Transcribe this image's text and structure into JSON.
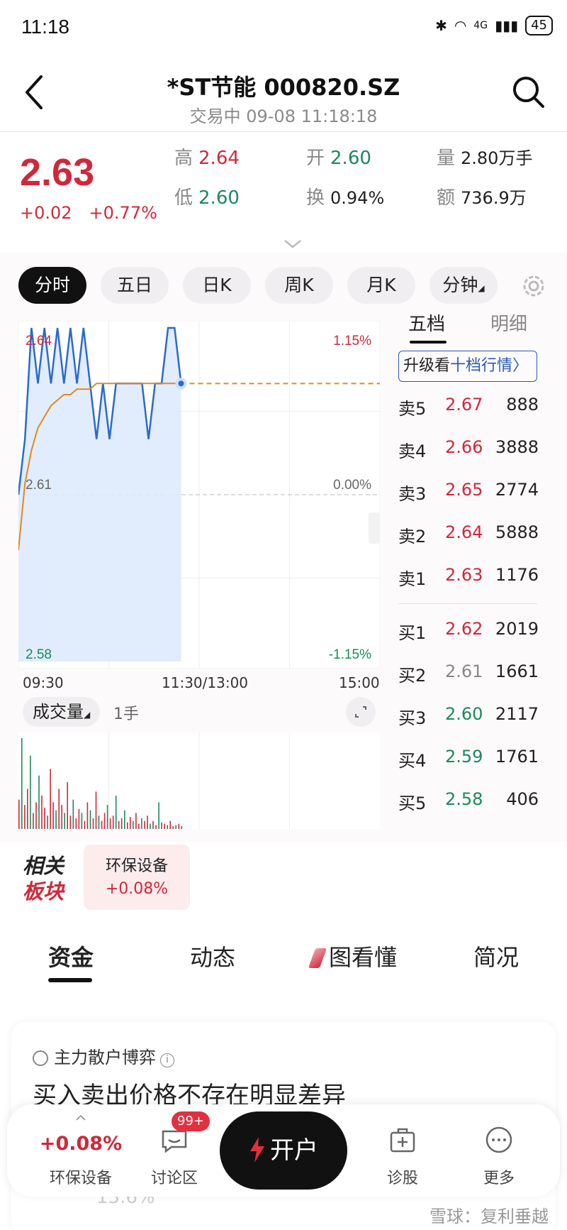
{
  "status": {
    "time": "11:18",
    "network": "4G",
    "battery": "45"
  },
  "header": {
    "title": "*ST节能 000820.SZ",
    "subtitle": "交易中 09-08 11:18:18"
  },
  "quote": {
    "price": "2.63",
    "change": "+0.02",
    "change_pct": "+0.77%",
    "high_label": "高",
    "high": "2.64",
    "open_label": "开",
    "open": "2.60",
    "volume_label": "量",
    "volume": "2.80万手",
    "low_label": "低",
    "low": "2.60",
    "turnover_label": "换",
    "turnover": "0.94%",
    "amount_label": "额",
    "amount": "736.9万"
  },
  "chart_tabs": [
    "分时",
    "五日",
    "日K",
    "周K",
    "月K",
    "分钟"
  ],
  "chart_data": {
    "type": "line",
    "y_price_labels": [
      "2.64",
      "2.61",
      "2.58"
    ],
    "y_pct_labels": [
      "1.15%",
      "0.00%",
      "-1.15%"
    ],
    "x_labels": [
      "09:30",
      "11:30/13:00",
      "15:00"
    ],
    "prev_close": 2.61,
    "ylim": [
      2.58,
      2.64
    ],
    "series": [
      {
        "values": [
          2.61,
          2.62,
          2.64,
          2.63,
          2.64,
          2.63,
          2.64,
          2.63,
          2.64,
          2.63,
          2.64,
          2.63,
          2.62,
          2.63,
          2.62,
          2.63,
          2.63,
          2.63,
          2.63,
          2.63,
          2.62,
          2.63,
          2.63,
          2.64,
          2.64,
          2.63
        ]
      },
      {
        "values": [
          2.6,
          2.612,
          2.618,
          2.622,
          2.624,
          2.626,
          2.627,
          2.628,
          2.628,
          2.629,
          2.629,
          2.629,
          2.63,
          2.63,
          2.63,
          2.63,
          2.63,
          2.63,
          2.63,
          2.63,
          2.63,
          2.63,
          2.63,
          2.63,
          2.63,
          2.63
        ]
      }
    ],
    "volume_label": "成交量",
    "volume_unit": "1手",
    "volumes": [
      22,
      68,
      18,
      30,
      55,
      12,
      20,
      40,
      25,
      16,
      10,
      45,
      20,
      14,
      30,
      18,
      12,
      35,
      10,
      22,
      8,
      15,
      12,
      6,
      20,
      14,
      8,
      28,
      10,
      6,
      12,
      18,
      8,
      10,
      25,
      6,
      8,
      14,
      5,
      9,
      6,
      12,
      4,
      8,
      6,
      10,
      4,
      6,
      3,
      20,
      5,
      4,
      3,
      6,
      2,
      3,
      4,
      2
    ]
  },
  "orderbook": {
    "tab_active": "五档",
    "tab_inactive": "明细",
    "upgrade_prefix": "升级看",
    "upgrade_link": "十档行情",
    "asks": [
      {
        "label": "卖5",
        "price": "2.67",
        "vol": "888"
      },
      {
        "label": "卖4",
        "price": "2.66",
        "vol": "3888"
      },
      {
        "label": "卖3",
        "price": "2.65",
        "vol": "2774"
      },
      {
        "label": "卖2",
        "price": "2.64",
        "vol": "5888"
      },
      {
        "label": "卖1",
        "price": "2.63",
        "vol": "1176"
      }
    ],
    "bids": [
      {
        "label": "买1",
        "price": "2.62",
        "vol": "2019"
      },
      {
        "label": "买2",
        "price": "2.61",
        "vol": "1661"
      },
      {
        "label": "买3",
        "price": "2.60",
        "vol": "2117"
      },
      {
        "label": "买4",
        "price": "2.59",
        "vol": "1761"
      },
      {
        "label": "买5",
        "price": "2.58",
        "vol": "406"
      }
    ]
  },
  "related": {
    "label_line1": "相关",
    "label_line2": "板块",
    "sector": "环保设备",
    "sector_pct": "+0.08%"
  },
  "section_tabs": [
    "资金",
    "动态",
    "图看懂",
    "简况"
  ],
  "card": {
    "head": "主力散户博弈",
    "title": "买入卖出价格不存在明显差异",
    "bottom_text": "13.6%"
  },
  "bottombar": {
    "sector_pct": "+0.08%",
    "sector": "环保设备",
    "discuss": "讨论区",
    "badge": "99+",
    "open": "开户",
    "diagnose": "诊股",
    "more": "更多"
  },
  "watermark": "雪球：复利垂越",
  "colors": {
    "up": "#d0283a",
    "down": "#1b8a5a",
    "line": "#2a6ad0",
    "avg": "#e08a1e"
  }
}
